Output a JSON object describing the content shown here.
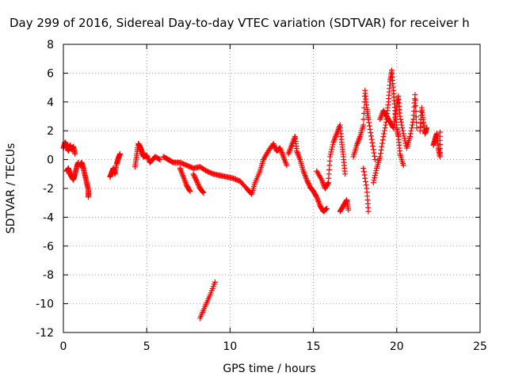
{
  "chart_data": {
    "type": "scatter",
    "title": "Day 299 of 2016, Sidereal Day-to-day VTEC variation (SDTVAR) for receiver h",
    "xlabel": "GPS time / hours",
    "ylabel": "SDTVAR / TECUs",
    "xlim": [
      0,
      25
    ],
    "ylim": [
      -12,
      8
    ],
    "xticks": [
      0,
      5,
      10,
      15,
      20,
      25
    ],
    "yticks": [
      -12,
      -10,
      -8,
      -6,
      -4,
      -2,
      0,
      2,
      4,
      6,
      8
    ],
    "grid": true,
    "marker": "+",
    "series": [
      {
        "name": "SDTVAR",
        "color": "#ff0000",
        "segments": [
          [
            [
              0.0,
              0.8
            ],
            [
              0.1,
              1.2
            ],
            [
              0.2,
              1.0
            ],
            [
              0.3,
              0.6
            ],
            [
              0.4,
              1.0
            ],
            [
              0.5,
              0.7
            ],
            [
              0.6,
              0.9
            ],
            [
              0.7,
              0.4
            ]
          ],
          [
            [
              0.2,
              -0.8
            ],
            [
              0.3,
              -0.6
            ],
            [
              0.4,
              -1.0
            ],
            [
              0.5,
              -1.2
            ],
            [
              0.6,
              -1.4
            ],
            [
              0.7,
              -1.0
            ],
            [
              0.8,
              -0.5
            ],
            [
              0.9,
              -0.2
            ]
          ],
          [
            [
              1.0,
              -0.4
            ],
            [
              1.1,
              -0.2
            ],
            [
              1.2,
              -0.6
            ],
            [
              1.3,
              -1.1
            ],
            [
              1.4,
              -1.6
            ],
            [
              1.5,
              -2.1
            ],
            [
              1.5,
              -2.6
            ]
          ],
          [
            [
              2.8,
              -1.2
            ],
            [
              2.9,
              -0.9
            ],
            [
              3.0,
              -0.6
            ],
            [
              3.1,
              -1.0
            ],
            [
              3.2,
              -0.3
            ],
            [
              3.3,
              0.1
            ],
            [
              3.4,
              0.4
            ]
          ],
          [
            [
              4.3,
              -0.5
            ],
            [
              4.4,
              0.3
            ],
            [
              4.5,
              1.1
            ],
            [
              4.6,
              0.9
            ],
            [
              4.7,
              0.6
            ],
            [
              4.8,
              0.2
            ],
            [
              5.0,
              0.3
            ],
            [
              5.2,
              -0.2
            ],
            [
              5.5,
              0.2
            ],
            [
              5.8,
              0.0
            ]
          ],
          [
            [
              6.0,
              0.2
            ],
            [
              6.3,
              0.0
            ],
            [
              6.6,
              -0.2
            ],
            [
              7.0,
              -0.2
            ],
            [
              7.4,
              -0.4
            ],
            [
              7.8,
              -0.6
            ],
            [
              8.2,
              -0.5
            ],
            [
              8.6,
              -0.8
            ],
            [
              9.0,
              -1.0
            ],
            [
              9.4,
              -1.1
            ],
            [
              9.8,
              -1.2
            ],
            [
              10.2,
              -1.3
            ],
            [
              10.6,
              -1.5
            ]
          ],
          [
            [
              7.0,
              -0.6
            ],
            [
              7.2,
              -1.2
            ],
            [
              7.4,
              -1.8
            ],
            [
              7.6,
              -2.2
            ]
          ],
          [
            [
              7.8,
              -1.0
            ],
            [
              8.0,
              -1.5
            ],
            [
              8.2,
              -2.0
            ],
            [
              8.4,
              -2.3
            ]
          ],
          [
            [
              10.6,
              -1.5
            ],
            [
              11.0,
              -2.0
            ],
            [
              11.3,
              -2.4
            ],
            [
              11.5,
              -1.6
            ],
            [
              11.8,
              -0.8
            ],
            [
              12.0,
              0.0
            ],
            [
              12.3,
              0.6
            ],
            [
              12.6,
              1.1
            ],
            [
              12.8,
              0.6
            ],
            [
              13.0,
              0.8
            ],
            [
              13.2,
              0.2
            ],
            [
              13.4,
              -0.4
            ]
          ],
          [
            [
              13.5,
              0.4
            ],
            [
              13.7,
              1.0
            ],
            [
              13.9,
              1.6
            ],
            [
              14.0,
              0.6
            ],
            [
              14.2,
              0.0
            ],
            [
              14.4,
              -0.8
            ],
            [
              14.6,
              -1.4
            ],
            [
              14.8,
              -1.9
            ],
            [
              15.0,
              -2.2
            ],
            [
              15.2,
              -2.6
            ],
            [
              15.4,
              -3.2
            ],
            [
              15.6,
              -3.6
            ],
            [
              15.8,
              -3.4
            ]
          ],
          [
            [
              15.2,
              -0.8
            ],
            [
              15.5,
              -1.4
            ],
            [
              15.7,
              -2.0
            ],
            [
              15.9,
              -1.6
            ],
            [
              16.0,
              0.2
            ],
            [
              16.2,
              1.2
            ],
            [
              16.4,
              1.8
            ],
            [
              16.6,
              2.4
            ],
            [
              16.7,
              1.2
            ],
            [
              16.8,
              0.2
            ],
            [
              16.9,
              -1.0
            ]
          ],
          [
            [
              16.6,
              -3.6
            ],
            [
              16.8,
              -3.2
            ],
            [
              17.0,
              -2.8
            ],
            [
              17.1,
              -3.5
            ]
          ],
          [
            [
              17.4,
              0.2
            ],
            [
              17.6,
              1.0
            ],
            [
              17.8,
              1.6
            ],
            [
              18.0,
              2.4
            ],
            [
              18.1,
              4.8
            ],
            [
              18.2,
              3.6
            ],
            [
              18.3,
              2.8
            ],
            [
              18.5,
              1.4
            ],
            [
              18.7,
              0.0
            ]
          ],
          [
            [
              18.0,
              -0.6
            ],
            [
              18.2,
              -2.0
            ],
            [
              18.3,
              -3.6
            ]
          ],
          [
            [
              18.6,
              -1.6
            ],
            [
              18.8,
              -0.6
            ],
            [
              19.0,
              0.2
            ],
            [
              19.2,
              1.6
            ],
            [
              19.4,
              2.8
            ],
            [
              19.5,
              4.0
            ],
            [
              19.6,
              5.4
            ],
            [
              19.7,
              6.2
            ],
            [
              19.8,
              4.8
            ],
            [
              19.9,
              3.4
            ],
            [
              20.0,
              2.2
            ],
            [
              20.1,
              1.6
            ],
            [
              20.2,
              0.4
            ],
            [
              20.4,
              -0.4
            ]
          ],
          [
            [
              19.0,
              2.8
            ],
            [
              19.2,
              3.4
            ],
            [
              19.4,
              3.0
            ],
            [
              19.6,
              2.6
            ],
            [
              19.8,
              2.2
            ],
            [
              20.0,
              3.6
            ],
            [
              20.1,
              4.4
            ],
            [
              20.2,
              3.0
            ],
            [
              20.4,
              1.8
            ],
            [
              20.6,
              0.8
            ],
            [
              20.8,
              1.6
            ],
            [
              21.0,
              2.8
            ],
            [
              21.1,
              4.5
            ],
            [
              21.2,
              2.2
            ]
          ],
          [
            [
              21.4,
              2.0
            ],
            [
              21.5,
              3.6
            ],
            [
              21.6,
              2.6
            ],
            [
              21.7,
              1.8
            ],
            [
              21.8,
              2.2
            ]
          ],
          [
            [
              22.2,
              1.0
            ],
            [
              22.3,
              1.4
            ],
            [
              22.4,
              1.8
            ],
            [
              22.5,
              0.8
            ],
            [
              22.6,
              0.2
            ],
            [
              22.6,
              1.9
            ]
          ],
          [
            [
              8.2,
              -11.0
            ],
            [
              8.5,
              -10.2
            ],
            [
              8.8,
              -9.4
            ],
            [
              9.1,
              -8.5
            ]
          ]
        ]
      }
    ]
  }
}
